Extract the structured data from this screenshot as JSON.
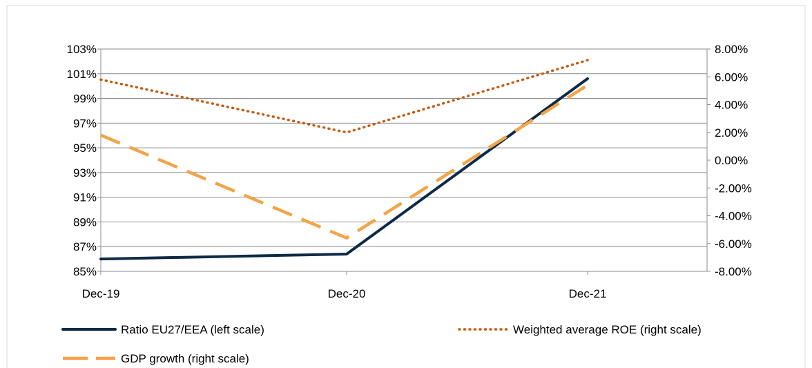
{
  "chart_data": {
    "type": "line",
    "categories": [
      "Dec-19",
      "Dec-20",
      "Dec-21"
    ],
    "left_axis": {
      "min": 85,
      "max": 103,
      "step": 2,
      "tick_labels": [
        "85%",
        "87%",
        "89%",
        "91%",
        "93%",
        "95%",
        "97%",
        "99%",
        "101%",
        "103%"
      ]
    },
    "right_axis": {
      "min": -8,
      "max": 8,
      "step": 2,
      "tick_labels": [
        "-8.00%",
        "-6.00%",
        "-4.00%",
        "-2.00%",
        "0.00%",
        "2.00%",
        "4.00%",
        "6.00%",
        "8.00%"
      ]
    },
    "grid": true,
    "legend_position": "bottom",
    "series": [
      {
        "name": "Ratio EU27/EEA (left scale)",
        "axis": "left",
        "style": "solid",
        "color": "#0d2a47",
        "values": [
          86.0,
          86.4,
          100.6
        ]
      },
      {
        "name": "Weighted average ROE (right scale)",
        "axis": "right",
        "style": "dotted",
        "color": "#c55a11",
        "values": [
          5.8,
          2.0,
          7.2
        ]
      },
      {
        "name": "GDP growth (right scale)",
        "axis": "right",
        "style": "dashed",
        "color": "#f4a347",
        "values": [
          1.8,
          -5.6,
          5.4
        ]
      }
    ]
  }
}
